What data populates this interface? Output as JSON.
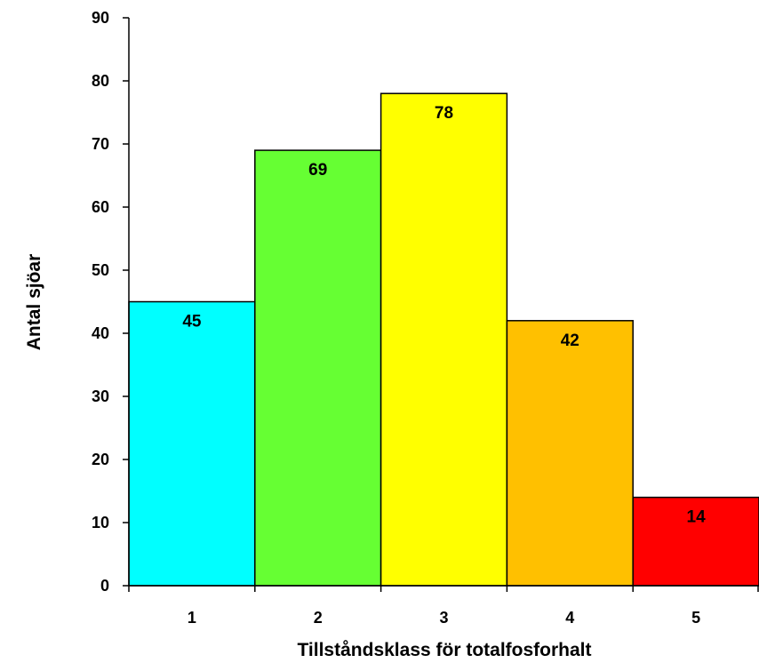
{
  "chart_data": {
    "type": "bar",
    "title": "",
    "xlabel": "Tillståndsklass för totalfosforhalt",
    "ylabel": "Antal sjöar",
    "categories": [
      "1",
      "2",
      "3",
      "4",
      "5"
    ],
    "values": [
      45,
      69,
      78,
      42,
      14
    ],
    "colors": [
      "#00FFFF",
      "#66FF33",
      "#FFFF00",
      "#FFC000",
      "#FF0000"
    ],
    "ylim": [
      0,
      90
    ],
    "yticks": [
      0,
      10,
      20,
      30,
      40,
      50,
      60,
      70,
      80,
      90
    ],
    "grid": false,
    "legend": "none",
    "data_labels": true,
    "bar_gap": 0
  }
}
